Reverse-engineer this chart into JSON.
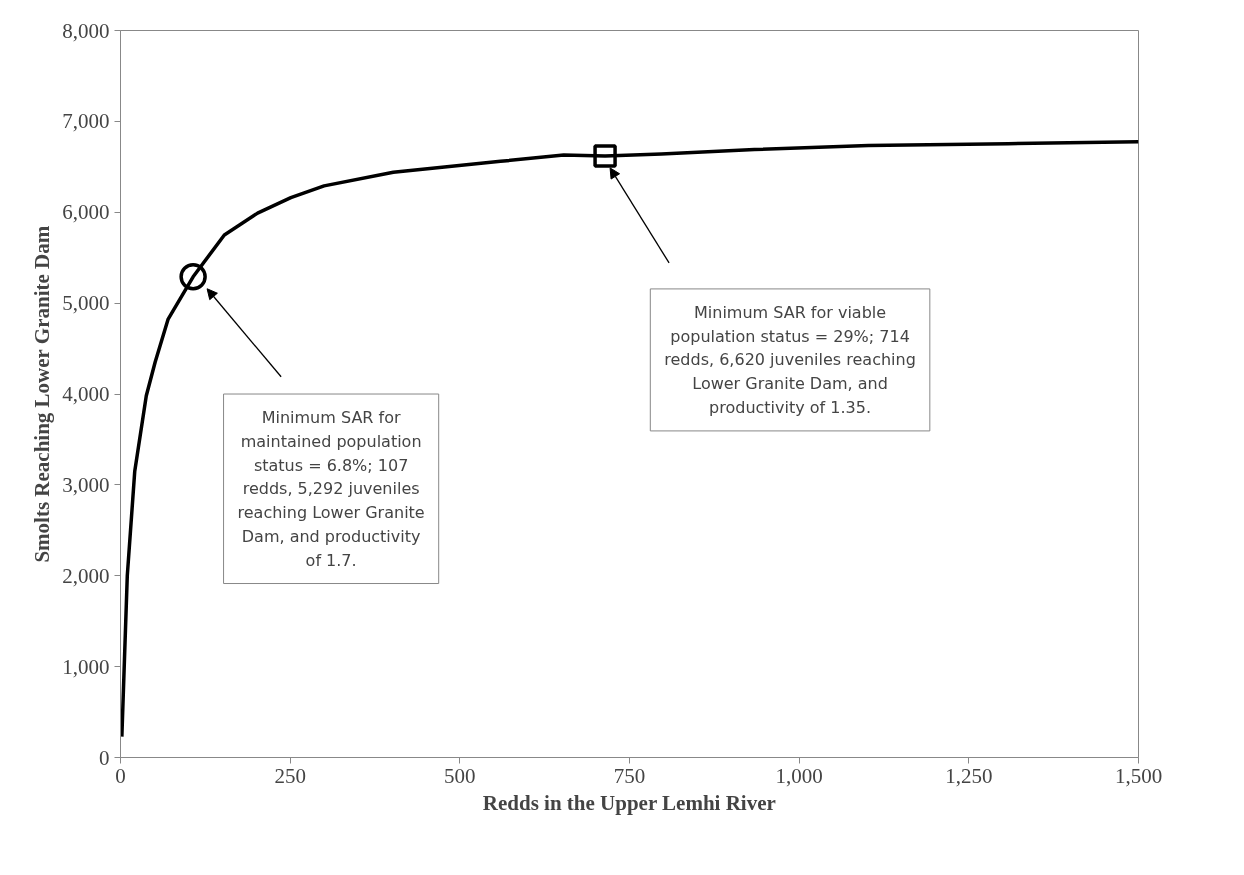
{
  "chart_data": {
    "type": "line",
    "xlabel": "Redds in the Upper Lemhi River",
    "ylabel": "Smolts Reaching Lower Granite Dam",
    "xlim": [
      0,
      1500
    ],
    "xticks": [
      0,
      250,
      500,
      750,
      {
        "value": 1000,
        "label": "1,000"
      },
      {
        "value": 1250,
        "label": "1,250"
      },
      {
        "value": 1500,
        "label": "1,500"
      }
    ],
    "ylim": [
      0,
      8000
    ],
    "yticks": [
      0,
      {
        "value": 1000,
        "label": "1,000"
      },
      {
        "value": 2000,
        "label": "2,000"
      },
      {
        "value": 3000,
        "label": "3,000"
      },
      {
        "value": 4000,
        "label": "4,000"
      },
      {
        "value": 5000,
        "label": "5,000"
      },
      {
        "value": 6000,
        "label": "6,000"
      },
      {
        "value": 7000,
        "label": "7,000"
      },
      {
        "value": 8000,
        "label": "8,000"
      }
    ],
    "series": [
      {
        "color": "#000000",
        "marker": "none",
        "x": [
          2,
          10,
          21,
          38,
          51,
          70,
          107,
          153,
          202,
          251,
          300,
          402,
          560,
          653,
          714,
          797,
          934,
          1102,
          1308,
          1500
        ],
        "values": [
          230,
          2000,
          3150,
          3980,
          4350,
          4820,
          5290,
          5750,
          5990,
          6160,
          6290,
          6440,
          6560,
          6630,
          6620,
          6640,
          6690,
          6735,
          6755,
          6775
        ]
      },
      {
        "type": "scatter",
        "color": "#000000",
        "marker": "circle",
        "x": [
          107
        ],
        "values": [
          5290
        ]
      },
      {
        "type": "scatter",
        "color": "#000000",
        "marker": "square",
        "x": [
          714
        ],
        "values": [
          6620
        ]
      }
    ],
    "annotations": [
      "Minimum SAR for maintained population status = 6.8%; 107 redds, 5,292 juveniles reaching Lower Granite Dam, and productivity of 1.7.",
      "Minimum SAR for viable population status = 29%; 714 redds, 6,620 juveniles reaching Lower Granite Dam, and productivity of 1.35."
    ]
  }
}
